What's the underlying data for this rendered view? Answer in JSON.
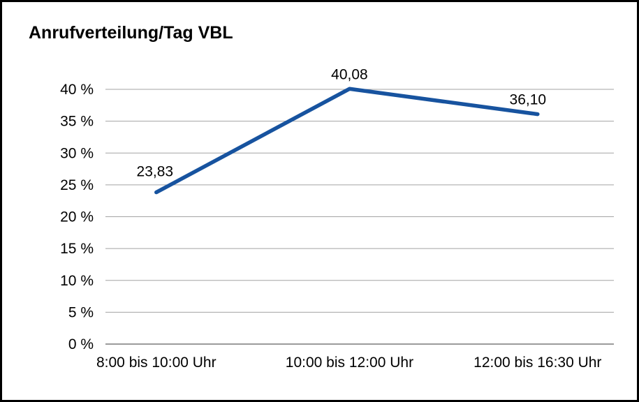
{
  "chart_data": {
    "type": "line",
    "title": "Anrufverteilung/Tag VBL",
    "categories": [
      "8:00 bis 10:00 Uhr",
      "10:00 bis 12:00 Uhr",
      "12:00 bis 16:30 Uhr"
    ],
    "values": [
      23.83,
      40.08,
      36.1
    ],
    "value_labels": [
      "23,83",
      "40,08",
      "36,10"
    ],
    "xlabel": "",
    "ylabel": "",
    "ylim": [
      0,
      40
    ],
    "ytick_step": 5,
    "ytick_labels": [
      "0 %",
      "5 %",
      "10 %",
      "15 %",
      "20 %",
      "25 %",
      "30 %",
      "35 %",
      "40 %"
    ],
    "grid": true,
    "legend_position": "none",
    "series_name": "Anrufverteilung",
    "line_color": "#17539f",
    "grid_color": "#a3a3a3",
    "axis_color": "#7a7a7a",
    "text_color": "#000000",
    "background_color": "#ffffff"
  }
}
